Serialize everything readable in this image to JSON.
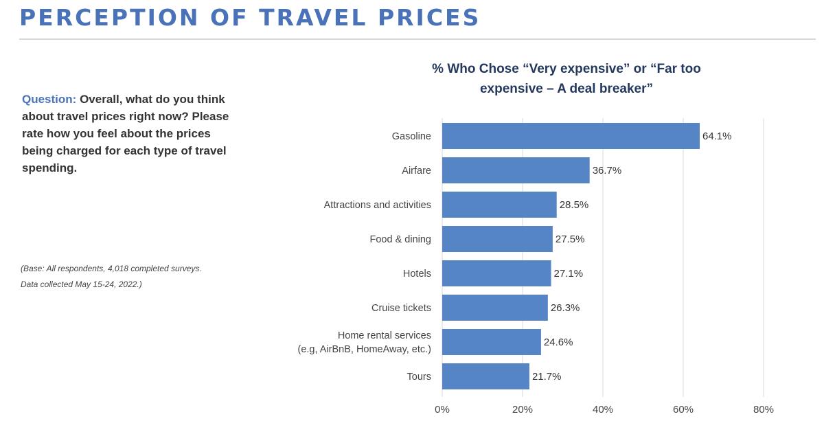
{
  "header": {
    "title": "PERCEPTION OF TRAVEL PRICES"
  },
  "question": {
    "label": "Question:",
    "text": " Overall, what do you think about travel prices right now? Please rate how you feel about the prices being charged for each type of travel spending."
  },
  "base_note": {
    "line1": "(Base: All respondents, 4,018 completed surveys.",
    "line2": "Data collected May 15-24, 2022.)"
  },
  "colors": {
    "accent": "#4a72b8",
    "bar": "#5585c5",
    "chart_title": "#24385e",
    "grid": "#d9d9d9"
  },
  "chart_data": {
    "type": "bar",
    "orientation": "horizontal",
    "title": "% Who Chose “Very expensive” or “Far too expensive – A deal breaker”",
    "categories": [
      "Gasoline",
      "Airfare",
      "Attractions and activities",
      "Food & dining",
      "Hotels",
      "Cruise tickets",
      "Home rental services\n(e.g, AirBnB, HomeAway, etc.)",
      "Tours"
    ],
    "values": [
      64.1,
      36.7,
      28.5,
      27.5,
      27.1,
      26.3,
      24.6,
      21.7
    ],
    "value_labels": [
      "64.1%",
      "36.7%",
      "28.5%",
      "27.5%",
      "27.1%",
      "26.3%",
      "24.6%",
      "21.7%"
    ],
    "xlim": [
      0,
      80
    ],
    "xticks": [
      0,
      20,
      40,
      60,
      80
    ],
    "xtick_labels": [
      "0%",
      "20%",
      "40%",
      "60%",
      "80%"
    ],
    "grid": true
  }
}
